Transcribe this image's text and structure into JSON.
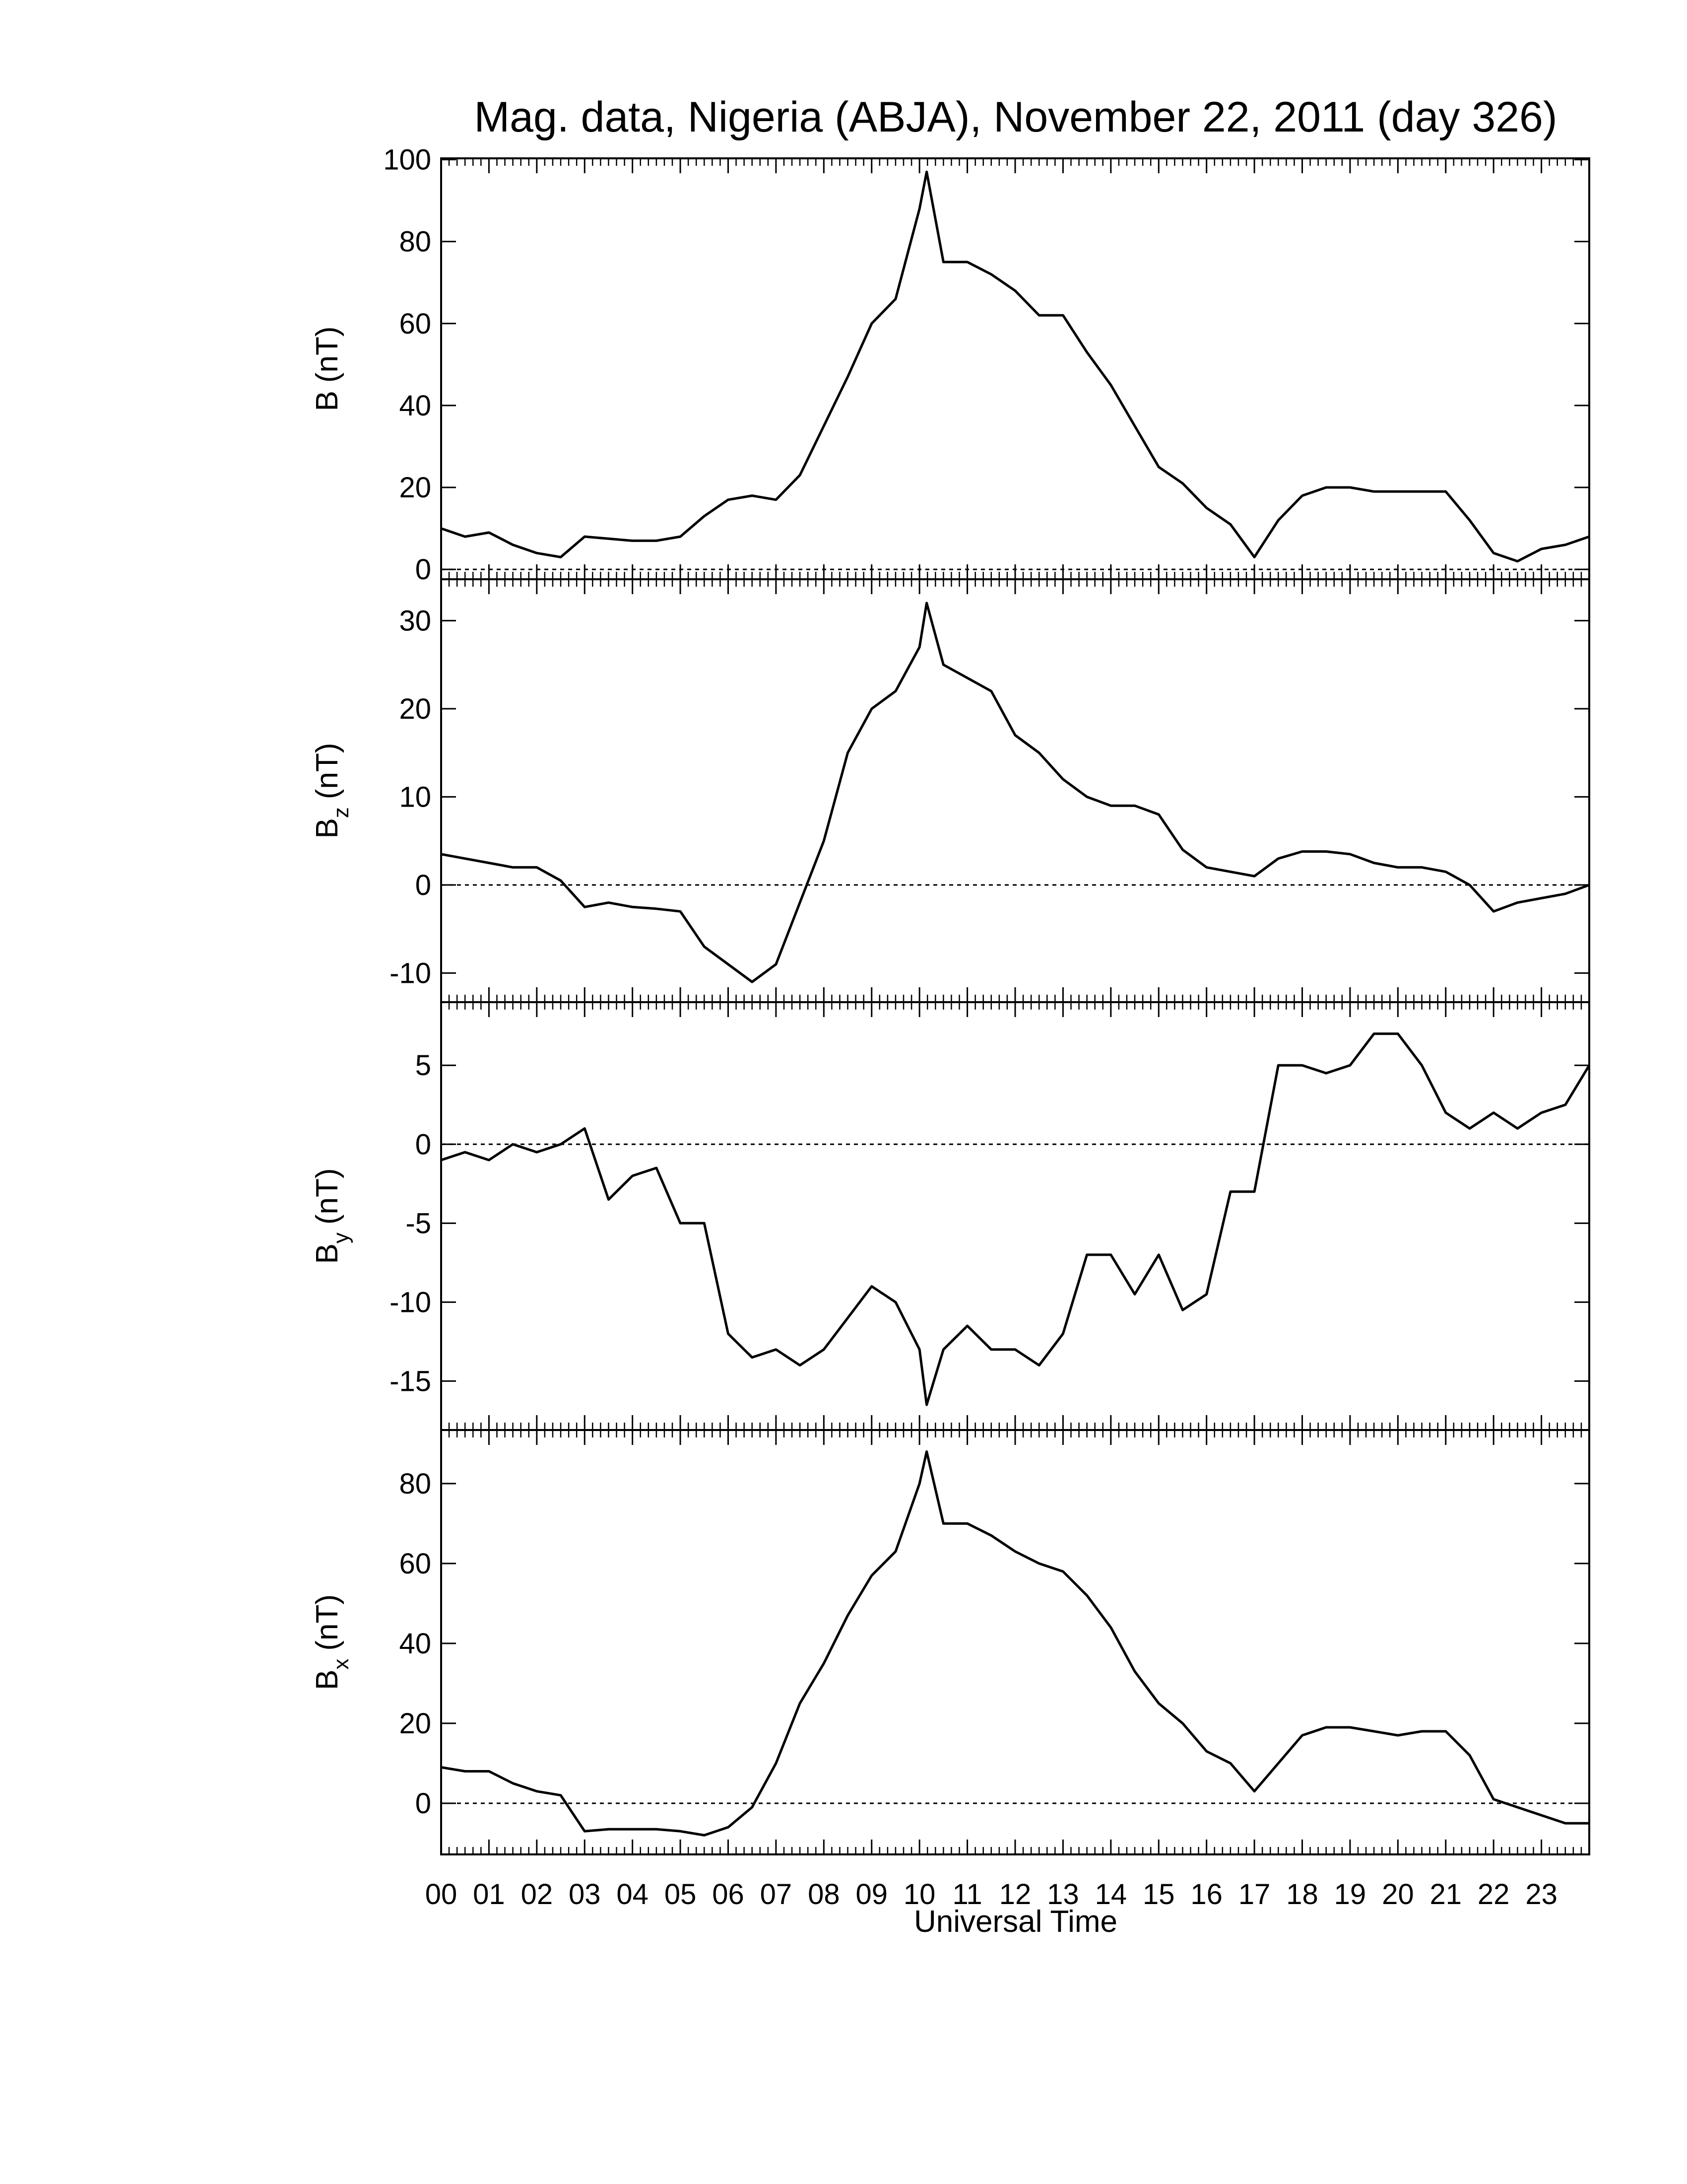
{
  "chart_data": [
    {
      "type": "line",
      "title": "Mag. data, Nigeria (ABJA), November 22, 2011 (day 326)",
      "ylabel": "B",
      "ylabel_unit": "(nT)",
      "x": [
        0,
        0.5,
        1,
        1.5,
        2,
        2.5,
        3,
        3.5,
        4,
        4.5,
        5,
        5.5,
        6,
        6.5,
        7,
        7.5,
        8,
        8.5,
        9,
        9.5,
        10,
        10.15,
        10.5,
        11,
        11.5,
        12,
        12.5,
        13,
        13.5,
        14,
        14.5,
        15,
        15.5,
        16,
        16.5,
        17,
        17.5,
        18,
        18.5,
        19,
        19.5,
        20,
        20.5,
        21,
        21.5,
        22,
        22.5,
        23,
        23.5,
        24
      ],
      "series": [
        {
          "color": "#000000",
          "values": [
            10,
            8,
            9,
            6,
            4,
            3,
            8,
            7.5,
            7,
            7,
            8,
            13,
            17,
            18,
            17,
            23,
            35,
            47,
            60,
            66,
            88,
            97,
            75,
            75,
            72,
            68,
            62,
            62,
            53,
            45,
            35,
            25,
            21,
            15,
            11,
            3,
            12,
            18,
            20,
            20,
            19,
            19,
            19,
            19,
            12,
            4,
            2,
            5,
            6,
            8
          ]
        }
      ],
      "xlim": [
        0,
        24
      ],
      "xticks": [
        0,
        1,
        2,
        3,
        4,
        5,
        6,
        7,
        8,
        9,
        10,
        11,
        12,
        13,
        14,
        15,
        16,
        17,
        18,
        19,
        20,
        21,
        22,
        23,
        24
      ],
      "xminor_divisions": 6,
      "ylim": [
        -2.4,
        100.3
      ],
      "yticks": [
        0,
        20,
        40,
        60,
        80,
        100
      ],
      "reference_line": 0
    },
    {
      "type": "line",
      "ylabel": "B",
      "ylabel_sub": "z",
      "ylabel_unit": "(nT)",
      "x": [
        0,
        0.5,
        1,
        1.5,
        2,
        2.5,
        3,
        3.5,
        4,
        4.5,
        5,
        5.5,
        6,
        6.5,
        7,
        7.5,
        8,
        8.5,
        9,
        9.5,
        10,
        10.15,
        10.5,
        11,
        11.5,
        12,
        12.5,
        13,
        13.5,
        14,
        14.5,
        15,
        15.5,
        16,
        16.5,
        17,
        17.5,
        18,
        18.5,
        19,
        19.5,
        20,
        20.5,
        21,
        21.5,
        22,
        22.5,
        23,
        23.5,
        24
      ],
      "series": [
        {
          "color": "#000000",
          "values": [
            3.5,
            3,
            2.5,
            2,
            2,
            0.5,
            -2.5,
            -2,
            -2.5,
            -2.7,
            -3,
            -7,
            -9,
            -11,
            -9,
            -2,
            5,
            15,
            20,
            22,
            27,
            32,
            25,
            23.5,
            22,
            17,
            15,
            12,
            10,
            9,
            9,
            8,
            4,
            2,
            1.5,
            1,
            3,
            3.8,
            3.8,
            3.5,
            2.5,
            2,
            2,
            1.5,
            0,
            -3,
            -2,
            -1.5,
            -1,
            0
          ]
        }
      ],
      "xlim": [
        0,
        24
      ],
      "xticks": [
        0,
        1,
        2,
        3,
        4,
        5,
        6,
        7,
        8,
        9,
        10,
        11,
        12,
        13,
        14,
        15,
        16,
        17,
        18,
        19,
        20,
        21,
        22,
        23,
        24
      ],
      "xminor_divisions": 6,
      "ylim": [
        -13.3,
        34.7
      ],
      "yticks": [
        -10,
        0,
        10,
        20,
        30
      ],
      "reference_line": 0
    },
    {
      "type": "line",
      "ylabel": "B",
      "ylabel_sub": "y",
      "ylabel_unit": "(nT)",
      "x": [
        0,
        0.5,
        1,
        1.5,
        2,
        2.5,
        3,
        3.5,
        4,
        4.5,
        5,
        5.5,
        6,
        6.5,
        7,
        7.5,
        8,
        8.5,
        9,
        9.5,
        10,
        10.15,
        10.5,
        11,
        11.5,
        12,
        12.5,
        13,
        13.5,
        14,
        14.5,
        15,
        15.5,
        16,
        16.5,
        17,
        17.5,
        18,
        18.5,
        19,
        19.5,
        20,
        20.5,
        21,
        21.5,
        22,
        22.5,
        23,
        23.5,
        24
      ],
      "series": [
        {
          "color": "#000000",
          "values": [
            -1,
            -0.5,
            -1,
            0,
            -0.5,
            0,
            1,
            -3.5,
            -2,
            -1.5,
            -5,
            -5,
            -12,
            -13.5,
            -13,
            -14,
            -13,
            -11,
            -9,
            -10,
            -13,
            -16.5,
            -13,
            -11.5,
            -13,
            -13,
            -14,
            -12,
            -7,
            -7,
            -9.5,
            -7,
            -10.5,
            -9.5,
            -3,
            -3,
            5,
            5,
            4.5,
            5,
            7,
            7,
            5,
            2,
            1,
            2,
            1,
            2,
            2.5,
            5
          ]
        }
      ],
      "xlim": [
        0,
        24
      ],
      "xticks": [
        0,
        1,
        2,
        3,
        4,
        5,
        6,
        7,
        8,
        9,
        10,
        11,
        12,
        13,
        14,
        15,
        16,
        17,
        18,
        19,
        20,
        21,
        22,
        23,
        24
      ],
      "xminor_divisions": 6,
      "ylim": [
        -18.1,
        9.0
      ],
      "yticks": [
        -15,
        -10,
        -5,
        0,
        5
      ],
      "reference_line": 0
    },
    {
      "type": "line",
      "ylabel": "B",
      "ylabel_sub": "x",
      "ylabel_unit": "(nT)",
      "xlabel": "Universal Time",
      "x": [
        0,
        0.5,
        1,
        1.5,
        2,
        2.5,
        3,
        3.5,
        4,
        4.5,
        5,
        5.5,
        6,
        6.5,
        7,
        7.5,
        8,
        8.5,
        9,
        9.5,
        10,
        10.15,
        10.5,
        11,
        11.5,
        12,
        12.5,
        13,
        13.5,
        14,
        14.5,
        15,
        15.5,
        16,
        16.5,
        17,
        17.5,
        18,
        18.5,
        19,
        19.5,
        20,
        20.5,
        21,
        21.5,
        22,
        22.5,
        23,
        23.5,
        24
      ],
      "series": [
        {
          "color": "#000000",
          "values": [
            9,
            8,
            8,
            5,
            3,
            2,
            -7,
            -6.5,
            -6.5,
            -6.5,
            -7,
            -8,
            -6,
            -1,
            10,
            25,
            35,
            47,
            57,
            63,
            80,
            88,
            70,
            70,
            67,
            63,
            60,
            58,
            52,
            44,
            33,
            25,
            20,
            13,
            10,
            3,
            10,
            17,
            19,
            19,
            18,
            17,
            18,
            18,
            12,
            1,
            -1,
            -3,
            -5,
            -5
          ]
        }
      ],
      "xlim": [
        0,
        24
      ],
      "xticks": [
        {
          "value": 0,
          "label": "00"
        },
        {
          "value": 1,
          "label": "01"
        },
        {
          "value": 2,
          "label": "02"
        },
        {
          "value": 3,
          "label": "03"
        },
        {
          "value": 4,
          "label": "04"
        },
        {
          "value": 5,
          "label": "05"
        },
        {
          "value": 6,
          "label": "06"
        },
        {
          "value": 7,
          "label": "07"
        },
        {
          "value": 8,
          "label": "08"
        },
        {
          "value": 9,
          "label": "09"
        },
        10,
        11,
        12,
        13,
        14,
        15,
        16,
        17,
        18,
        19,
        20,
        21,
        22,
        23
      ],
      "xminor_divisions": 6,
      "ylim": [
        -12.8,
        93.4
      ],
      "yticks": [
        0,
        20,
        40,
        60,
        80
      ],
      "reference_line": 0
    }
  ]
}
